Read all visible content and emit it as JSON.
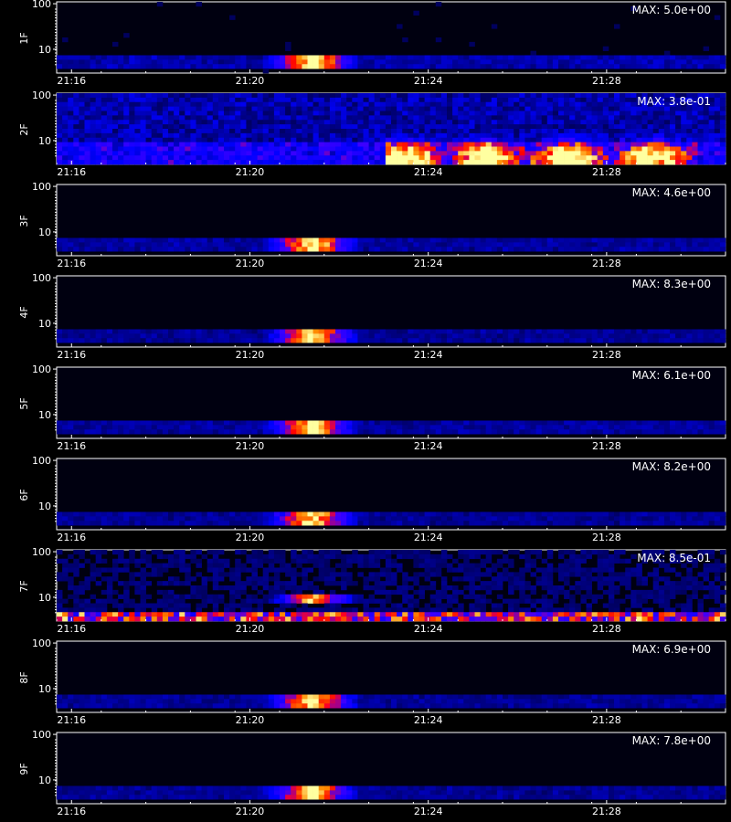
{
  "chart_data": [
    {
      "type": "heatmap",
      "ylabel": "1F",
      "max_label": "MAX: 5.0e+00",
      "y_ticks": [
        {
          "value": 10,
          "label": "10"
        },
        {
          "value": 100,
          "label": "100"
        }
      ],
      "x_ticks": [
        "21:16",
        "21:20",
        "21:24",
        "21:28"
      ],
      "background_noise": 0.06,
      "hotspot": {
        "start": "21:20:24",
        "end": "21:22:24",
        "freq_low": 4,
        "freq_high": 7,
        "peak": 1.0
      },
      "low_band": {
        "freq_low": 4,
        "freq_high": 7,
        "intensity": 0.22
      }
    },
    {
      "type": "heatmap",
      "ylabel": "2F",
      "max_label": "MAX: 3.8e-01",
      "y_ticks": [
        {
          "value": 10,
          "label": "10"
        },
        {
          "value": 100,
          "label": "100"
        }
      ],
      "x_ticks": [
        "21:16",
        "21:20",
        "21:24",
        "21:28"
      ],
      "background_noise": 0.24,
      "hotspot": {
        "start": "21:23:00",
        "end": "21:30:00",
        "freq_low": 3,
        "freq_high": 13,
        "peak": 0.85
      },
      "low_band": {
        "freq_low": 3,
        "freq_high": 10,
        "intensity": 0.28
      }
    },
    {
      "type": "heatmap",
      "ylabel": "3F",
      "max_label": "MAX: 4.6e+00",
      "y_ticks": [
        {
          "value": 10,
          "label": "10"
        },
        {
          "value": 100,
          "label": "100"
        }
      ],
      "x_ticks": [
        "21:16",
        "21:20",
        "21:24",
        "21:28"
      ],
      "background_noise": 0.05,
      "hotspot": {
        "start": "21:20:24",
        "end": "21:22:24",
        "freq_low": 4,
        "freq_high": 7,
        "peak": 1.0
      },
      "low_band": {
        "freq_low": 4,
        "freq_high": 7,
        "intensity": 0.2
      }
    },
    {
      "type": "heatmap",
      "ylabel": "4F",
      "max_label": "MAX: 8.3e+00",
      "y_ticks": [
        {
          "value": 10,
          "label": "10"
        },
        {
          "value": 100,
          "label": "100"
        }
      ],
      "x_ticks": [
        "21:16",
        "21:20",
        "21:24",
        "21:28"
      ],
      "background_noise": 0.05,
      "hotspot": {
        "start": "21:20:24",
        "end": "21:22:24",
        "freq_low": 4,
        "freq_high": 7,
        "peak": 1.0
      },
      "low_band": {
        "freq_low": 4,
        "freq_high": 7,
        "intensity": 0.18
      }
    },
    {
      "type": "heatmap",
      "ylabel": "5F",
      "max_label": "MAX: 6.1e+00",
      "y_ticks": [
        {
          "value": 10,
          "label": "10"
        },
        {
          "value": 100,
          "label": "100"
        }
      ],
      "x_ticks": [
        "21:16",
        "21:20",
        "21:24",
        "21:28"
      ],
      "background_noise": 0.05,
      "hotspot": {
        "start": "21:20:24",
        "end": "21:22:24",
        "freq_low": 4,
        "freq_high": 7,
        "peak": 1.0
      },
      "low_band": {
        "freq_low": 4,
        "freq_high": 7,
        "intensity": 0.2
      }
    },
    {
      "type": "heatmap",
      "ylabel": "6F",
      "max_label": "MAX: 8.2e+00",
      "y_ticks": [
        {
          "value": 10,
          "label": "10"
        },
        {
          "value": 100,
          "label": "100"
        }
      ],
      "x_ticks": [
        "21:16",
        "21:20",
        "21:24",
        "21:28"
      ],
      "background_noise": 0.05,
      "hotspot": {
        "start": "21:20:24",
        "end": "21:22:24",
        "freq_low": 4,
        "freq_high": 7,
        "peak": 1.0
      },
      "low_band": {
        "freq_low": 4,
        "freq_high": 7,
        "intensity": 0.18
      }
    },
    {
      "type": "heatmap",
      "ylabel": "7F",
      "max_label": "MAX: 8.5e-01",
      "y_ticks": [
        {
          "value": 10,
          "label": "10"
        },
        {
          "value": 100,
          "label": "100"
        }
      ],
      "x_ticks": [
        "21:16",
        "21:20",
        "21:24",
        "21:28"
      ],
      "background_noise": 0.12,
      "hotspot": {
        "start": "21:20:30",
        "end": "21:22:24",
        "freq_low": 7,
        "freq_high": 11,
        "peak": 1.0
      },
      "low_band": {
        "freq_low": 3,
        "freq_high": 4.5,
        "intensity": 0.85
      }
    },
    {
      "type": "heatmap",
      "ylabel": "8F",
      "max_label": "MAX: 6.9e+00",
      "y_ticks": [
        {
          "value": 10,
          "label": "10"
        },
        {
          "value": 100,
          "label": "100"
        }
      ],
      "x_ticks": [
        "21:16",
        "21:20",
        "21:24",
        "21:28"
      ],
      "background_noise": 0.05,
      "hotspot": {
        "start": "21:20:24",
        "end": "21:22:24",
        "freq_low": 4,
        "freq_high": 7,
        "peak": 1.0
      },
      "low_band": {
        "freq_low": 4,
        "freq_high": 7,
        "intensity": 0.18
      }
    },
    {
      "type": "heatmap",
      "ylabel": "9F",
      "max_label": "MAX: 7.8e+00",
      "y_ticks": [
        {
          "value": 10,
          "label": "10"
        },
        {
          "value": 100,
          "label": "100"
        }
      ],
      "x_ticks": [
        "21:16",
        "21:20",
        "21:24",
        "21:28"
      ],
      "background_noise": 0.05,
      "hotspot": {
        "start": "21:20:24",
        "end": "21:22:24",
        "freq_low": 4,
        "freq_high": 7,
        "peak": 1.0
      },
      "low_band": {
        "freq_low": 4,
        "freq_high": 7,
        "intensity": 0.18
      }
    }
  ]
}
